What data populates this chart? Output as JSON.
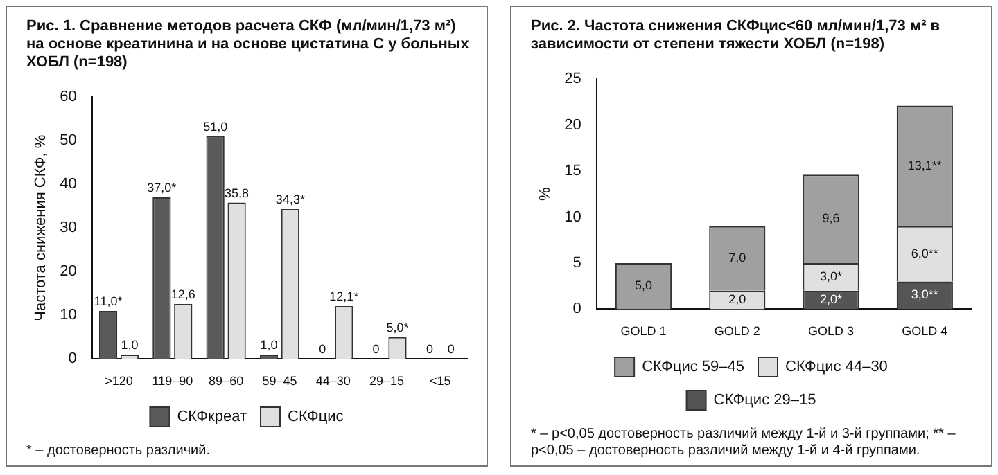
{
  "chart_data": [
    {
      "type": "bar",
      "title": "Рис. 1. Сравнение методов расчета СКФ (мл/мин/1,73 м²) на основе креатинина и на основе цистатина С у больных ХОБЛ (n=198)",
      "ylabel": "Частота снижения СКФ, %",
      "categories": [
        ">120",
        "119–90",
        "89–60",
        "59–45",
        "44–30",
        "29–15",
        "<15"
      ],
      "series": [
        {
          "name": "СКФкреат",
          "color": "#5a5a5a",
          "values": [
            11,
            37,
            51,
            1,
            0,
            0,
            0
          ],
          "value_labels": [
            "11,0*",
            "37,0*",
            "51,0",
            "1,0",
            "0",
            "0",
            "0"
          ]
        },
        {
          "name": "СКФцис",
          "color": "#e0e0e0",
          "values": [
            1,
            12.6,
            35.8,
            34.3,
            12.1,
            5,
            0
          ],
          "value_labels": [
            "1,0",
            "12,6",
            "35,8",
            "34,3*",
            "12,1*",
            "5,0*",
            "0"
          ]
        }
      ],
      "ylim": [
        0,
        60
      ],
      "yticks": [
        0,
        10,
        20,
        30,
        40,
        50,
        60
      ],
      "grid": false,
      "legend": "bottom",
      "annotations": [
        "* – достоверность различий."
      ]
    },
    {
      "type": "bar",
      "stacked": true,
      "title": "Рис. 2. Частота снижения СКФцис<60 мл/мин/1,73 м² в зависимости от степени тяжести ХОБЛ (n=198)",
      "ylabel": "%",
      "categories": [
        "GOLD 1",
        "GOLD 2",
        "GOLD 3",
        "GOLD 4"
      ],
      "series": [
        {
          "name": "СКФцис 29–15",
          "color": "#555555",
          "values": [
            0,
            0,
            2,
            3
          ],
          "value_labels": [
            null,
            null,
            "2,0*",
            "3,0**"
          ]
        },
        {
          "name": "СКФцис 44–30",
          "color": "#e0e0e0",
          "values": [
            0,
            2,
            3,
            6
          ],
          "value_labels": [
            null,
            "2,0",
            "3,0*",
            "6,0**"
          ]
        },
        {
          "name": "СКФцис 59–45",
          "color": "#a0a0a0",
          "values": [
            5,
            7,
            9.6,
            13.1
          ],
          "value_labels": [
            "5,0",
            "7,0",
            "9,6",
            "13,1**"
          ]
        }
      ],
      "ylim": [
        0,
        25
      ],
      "yticks": [
        0,
        5,
        10,
        15,
        20,
        25
      ],
      "grid": false,
      "legend": "bottom",
      "annotations": [
        "* – p<0,05 достоверность различий между 1-й и 3-й группами; ** – p<0,05 – достоверность различий между 1-й и 4-й группами."
      ]
    }
  ]
}
